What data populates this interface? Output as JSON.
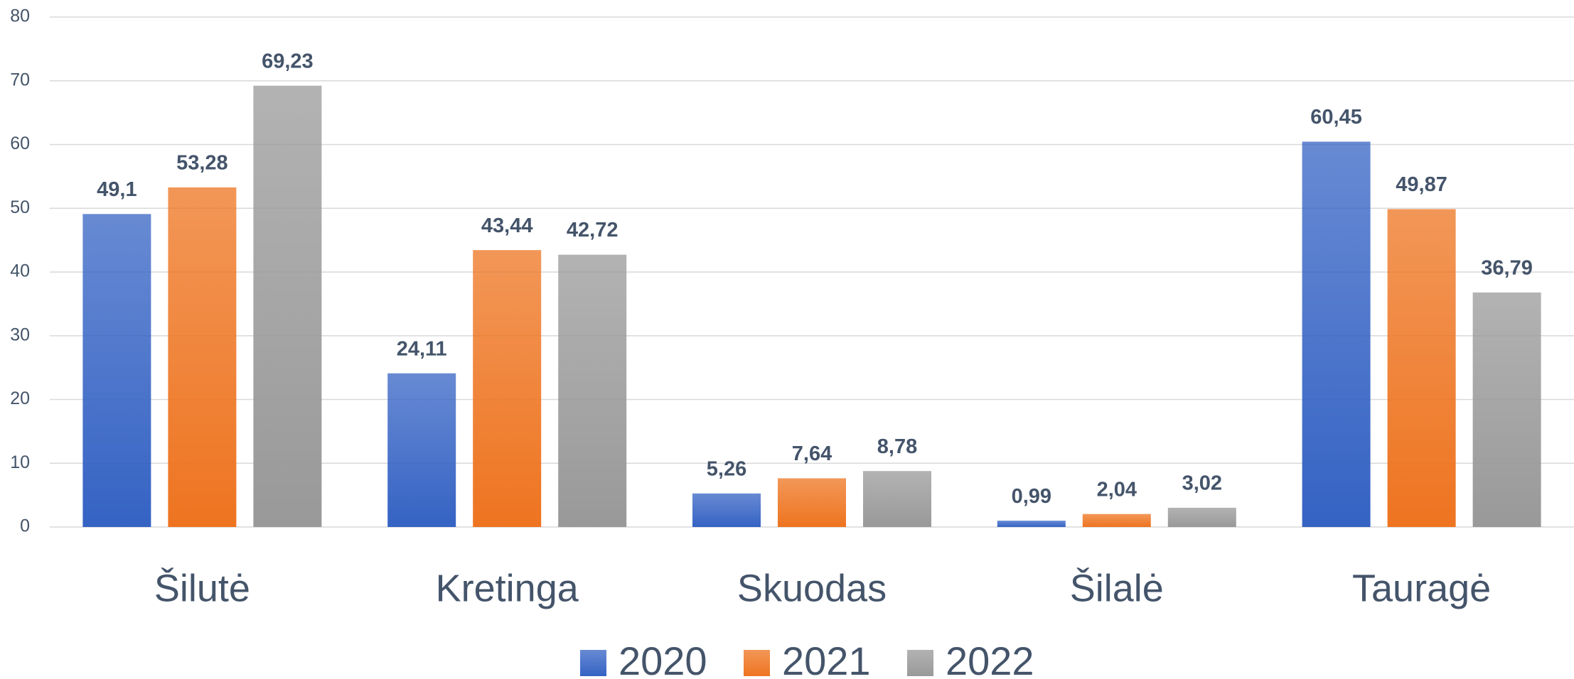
{
  "chart_data": {
    "type": "bar",
    "categories": [
      "Šilutė",
      "Kretinga",
      "Skuodas",
      "Šilalė",
      "Tauragė"
    ],
    "series": [
      {
        "name": "2020",
        "color": "#3563c4",
        "values": [
          49.1,
          24.11,
          5.26,
          0.99,
          60.45
        ],
        "value_labels": [
          "49,1",
          "24,11",
          "5,26",
          "0,99",
          "60,45"
        ]
      },
      {
        "name": "2021",
        "color": "#ee7420",
        "values": [
          53.28,
          43.44,
          7.64,
          2.04,
          49.87
        ],
        "value_labels": [
          "53,28",
          "43,44",
          "7,64",
          "2,04",
          "49,87"
        ]
      },
      {
        "name": "2022",
        "color": "#999999",
        "values": [
          69.23,
          42.72,
          8.78,
          3.02,
          36.79
        ],
        "value_labels": [
          "69,23",
          "42,72",
          "8,78",
          "3,02",
          "36,79"
        ]
      }
    ],
    "ylim": [
      0,
      80
    ],
    "yticks": [
      0,
      10,
      20,
      30,
      40,
      50,
      60,
      70,
      80
    ],
    "grid": true,
    "legend": "bottom"
  }
}
